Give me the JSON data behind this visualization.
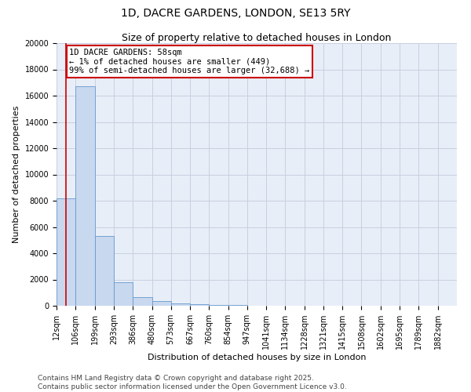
{
  "title": "1D, DACRE GARDENS, LONDON, SE13 5RY",
  "subtitle": "Size of property relative to detached houses in London",
  "xlabel": "Distribution of detached houses by size in London",
  "ylabel": "Number of detached properties",
  "annotation_title": "1D DACRE GARDENS: 58sqm",
  "annotation_line1": "← 1% of detached houses are smaller (449)",
  "annotation_line2": "99% of semi-detached houses are larger (32,688) →",
  "property_line_x": 58,
  "bar_color": "#c8d8ef",
  "bar_edge_color": "#6699cc",
  "annotation_box_color": "#cc0000",
  "property_line_color": "#cc0000",
  "grid_color": "#c8d0e0",
  "background_color": "#e8eef8",
  "categories": [
    "12sqm",
    "106sqm",
    "199sqm",
    "293sqm",
    "386sqm",
    "480sqm",
    "573sqm",
    "667sqm",
    "760sqm",
    "854sqm",
    "947sqm",
    "1041sqm",
    "1134sqm",
    "1228sqm",
    "1321sqm",
    "1415sqm",
    "1508sqm",
    "1602sqm",
    "1695sqm",
    "1789sqm",
    "1882sqm"
  ],
  "bin_edges": [
    12,
    106,
    199,
    293,
    386,
    480,
    573,
    667,
    760,
    854,
    947,
    1041,
    1134,
    1228,
    1321,
    1415,
    1508,
    1602,
    1695,
    1789,
    1882
  ],
  "bin_width": 94,
  "values": [
    8200,
    16700,
    5300,
    1800,
    650,
    330,
    200,
    100,
    55,
    35,
    20,
    15,
    10,
    8,
    5,
    4,
    3,
    2,
    2,
    1,
    0
  ],
  "ylim": [
    0,
    20000
  ],
  "yticks": [
    0,
    2000,
    4000,
    6000,
    8000,
    10000,
    12000,
    14000,
    16000,
    18000,
    20000
  ],
  "footer_line1": "Contains HM Land Registry data © Crown copyright and database right 2025.",
  "footer_line2": "Contains public sector information licensed under the Open Government Licence v3.0.",
  "title_fontsize": 10,
  "subtitle_fontsize": 9,
  "axis_label_fontsize": 8,
  "tick_fontsize": 7,
  "annotation_fontsize": 7.5,
  "footer_fontsize": 6.5
}
